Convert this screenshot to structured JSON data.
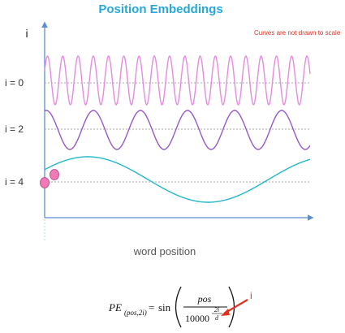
{
  "title": "Position Embeddings",
  "y_axis_label": "i",
  "note": "Curves are not drawn to scale",
  "row_labels": [
    "i = 0",
    "i = 2",
    "i = 4"
  ],
  "x_axis_label": "word position",
  "formula": {
    "lhs": "PE",
    "lhs_sub": "(pos,2i)",
    "equals": "=",
    "func": "sin",
    "numerator": "pos",
    "base": "10000",
    "exp_num": "2i",
    "exp_den": "d"
  },
  "callout_label": "i",
  "colors": {
    "title": "#27a8d8",
    "note": "#e0301e",
    "axis": "#5b8fd0",
    "wave_i0": "#e58be0",
    "wave_i2": "#9958c8",
    "wave_i4": "#22b8c8",
    "dots": "#f079b8",
    "callout": "#e0301e",
    "text": "#333333"
  }
}
